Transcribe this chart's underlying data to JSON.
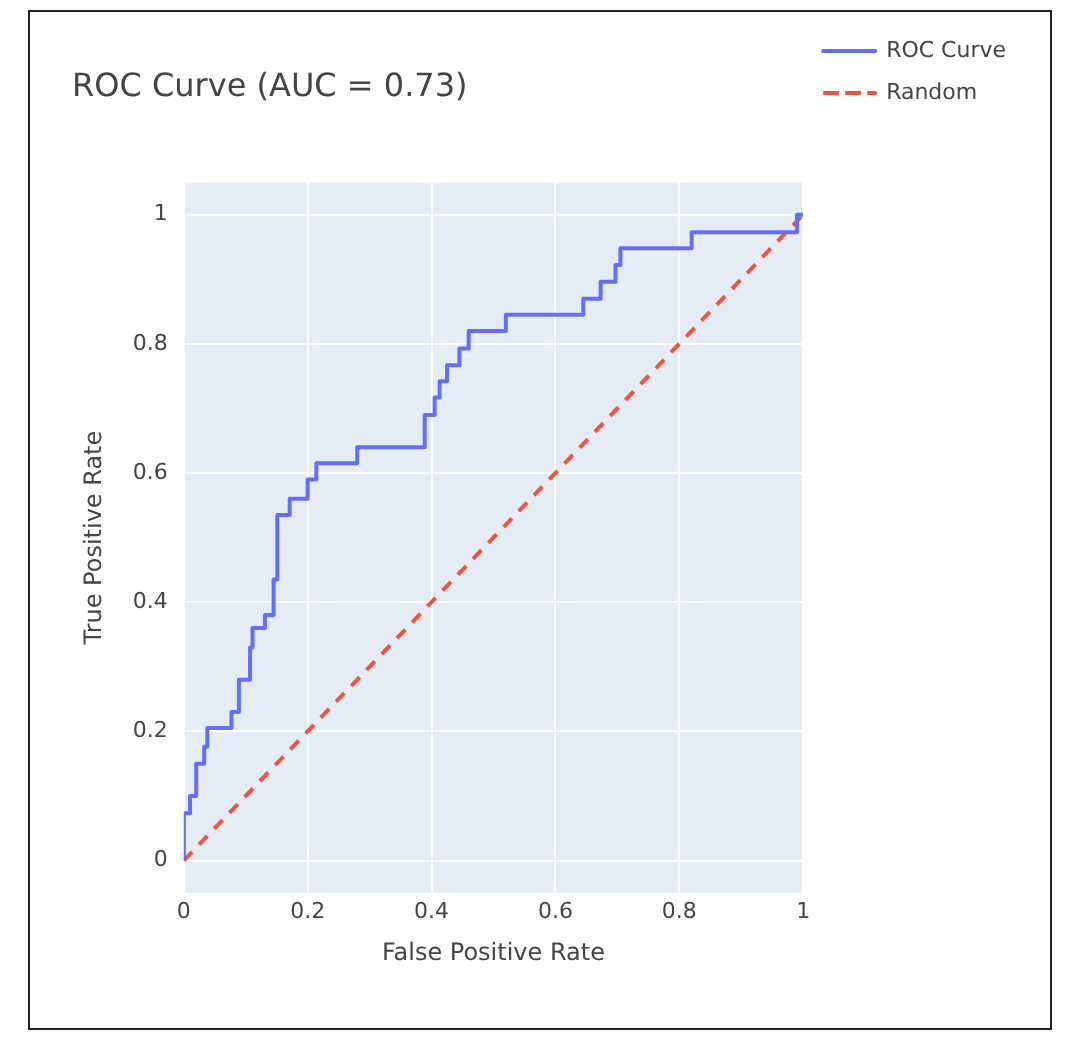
{
  "chart_data": {
    "type": "line",
    "title": "ROC Curve (AUC = 0.73)",
    "xlabel": "False Positive Rate",
    "ylabel": "True Positive Rate",
    "series": [
      {
        "name": "ROC Curve",
        "type": "step",
        "color": "#636efa",
        "line_style": "solid",
        "x": [
          0,
          0,
          0.01,
          0.02,
          0.033,
          0.038,
          0.077,
          0.089,
          0.107,
          0.111,
          0.131,
          0.145,
          0.151,
          0.171,
          0.2,
          0.214,
          0.28,
          0.389,
          0.405,
          0.413,
          0.425,
          0.445,
          0.46,
          0.52,
          0.645,
          0.673,
          0.697,
          0.705,
          0.82,
          0.99,
          1
        ],
        "values": [
          0,
          0.073,
          0.1,
          0.15,
          0.176,
          0.205,
          0.23,
          0.28,
          0.33,
          0.36,
          0.38,
          0.435,
          0.535,
          0.56,
          0.59,
          0.615,
          0.64,
          0.69,
          0.717,
          0.742,
          0.767,
          0.793,
          0.82,
          0.845,
          0.87,
          0.896,
          0.922,
          0.948,
          0.973,
          1,
          1
        ]
      },
      {
        "name": "Random",
        "color": "#ef553b",
        "line_style": "dashed",
        "x": [
          0,
          1
        ],
        "values": [
          0,
          1
        ]
      }
    ],
    "xlim": [
      0,
      1
    ],
    "ylim": [
      -0.05,
      1.05
    ],
    "xticks": [
      0,
      0.2,
      0.4,
      0.6,
      0.8,
      1
    ],
    "yticks": [
      0,
      0.2,
      0.4,
      0.6,
      0.8,
      1
    ],
    "grid": true,
    "legend": "top right",
    "marker": "none"
  }
}
